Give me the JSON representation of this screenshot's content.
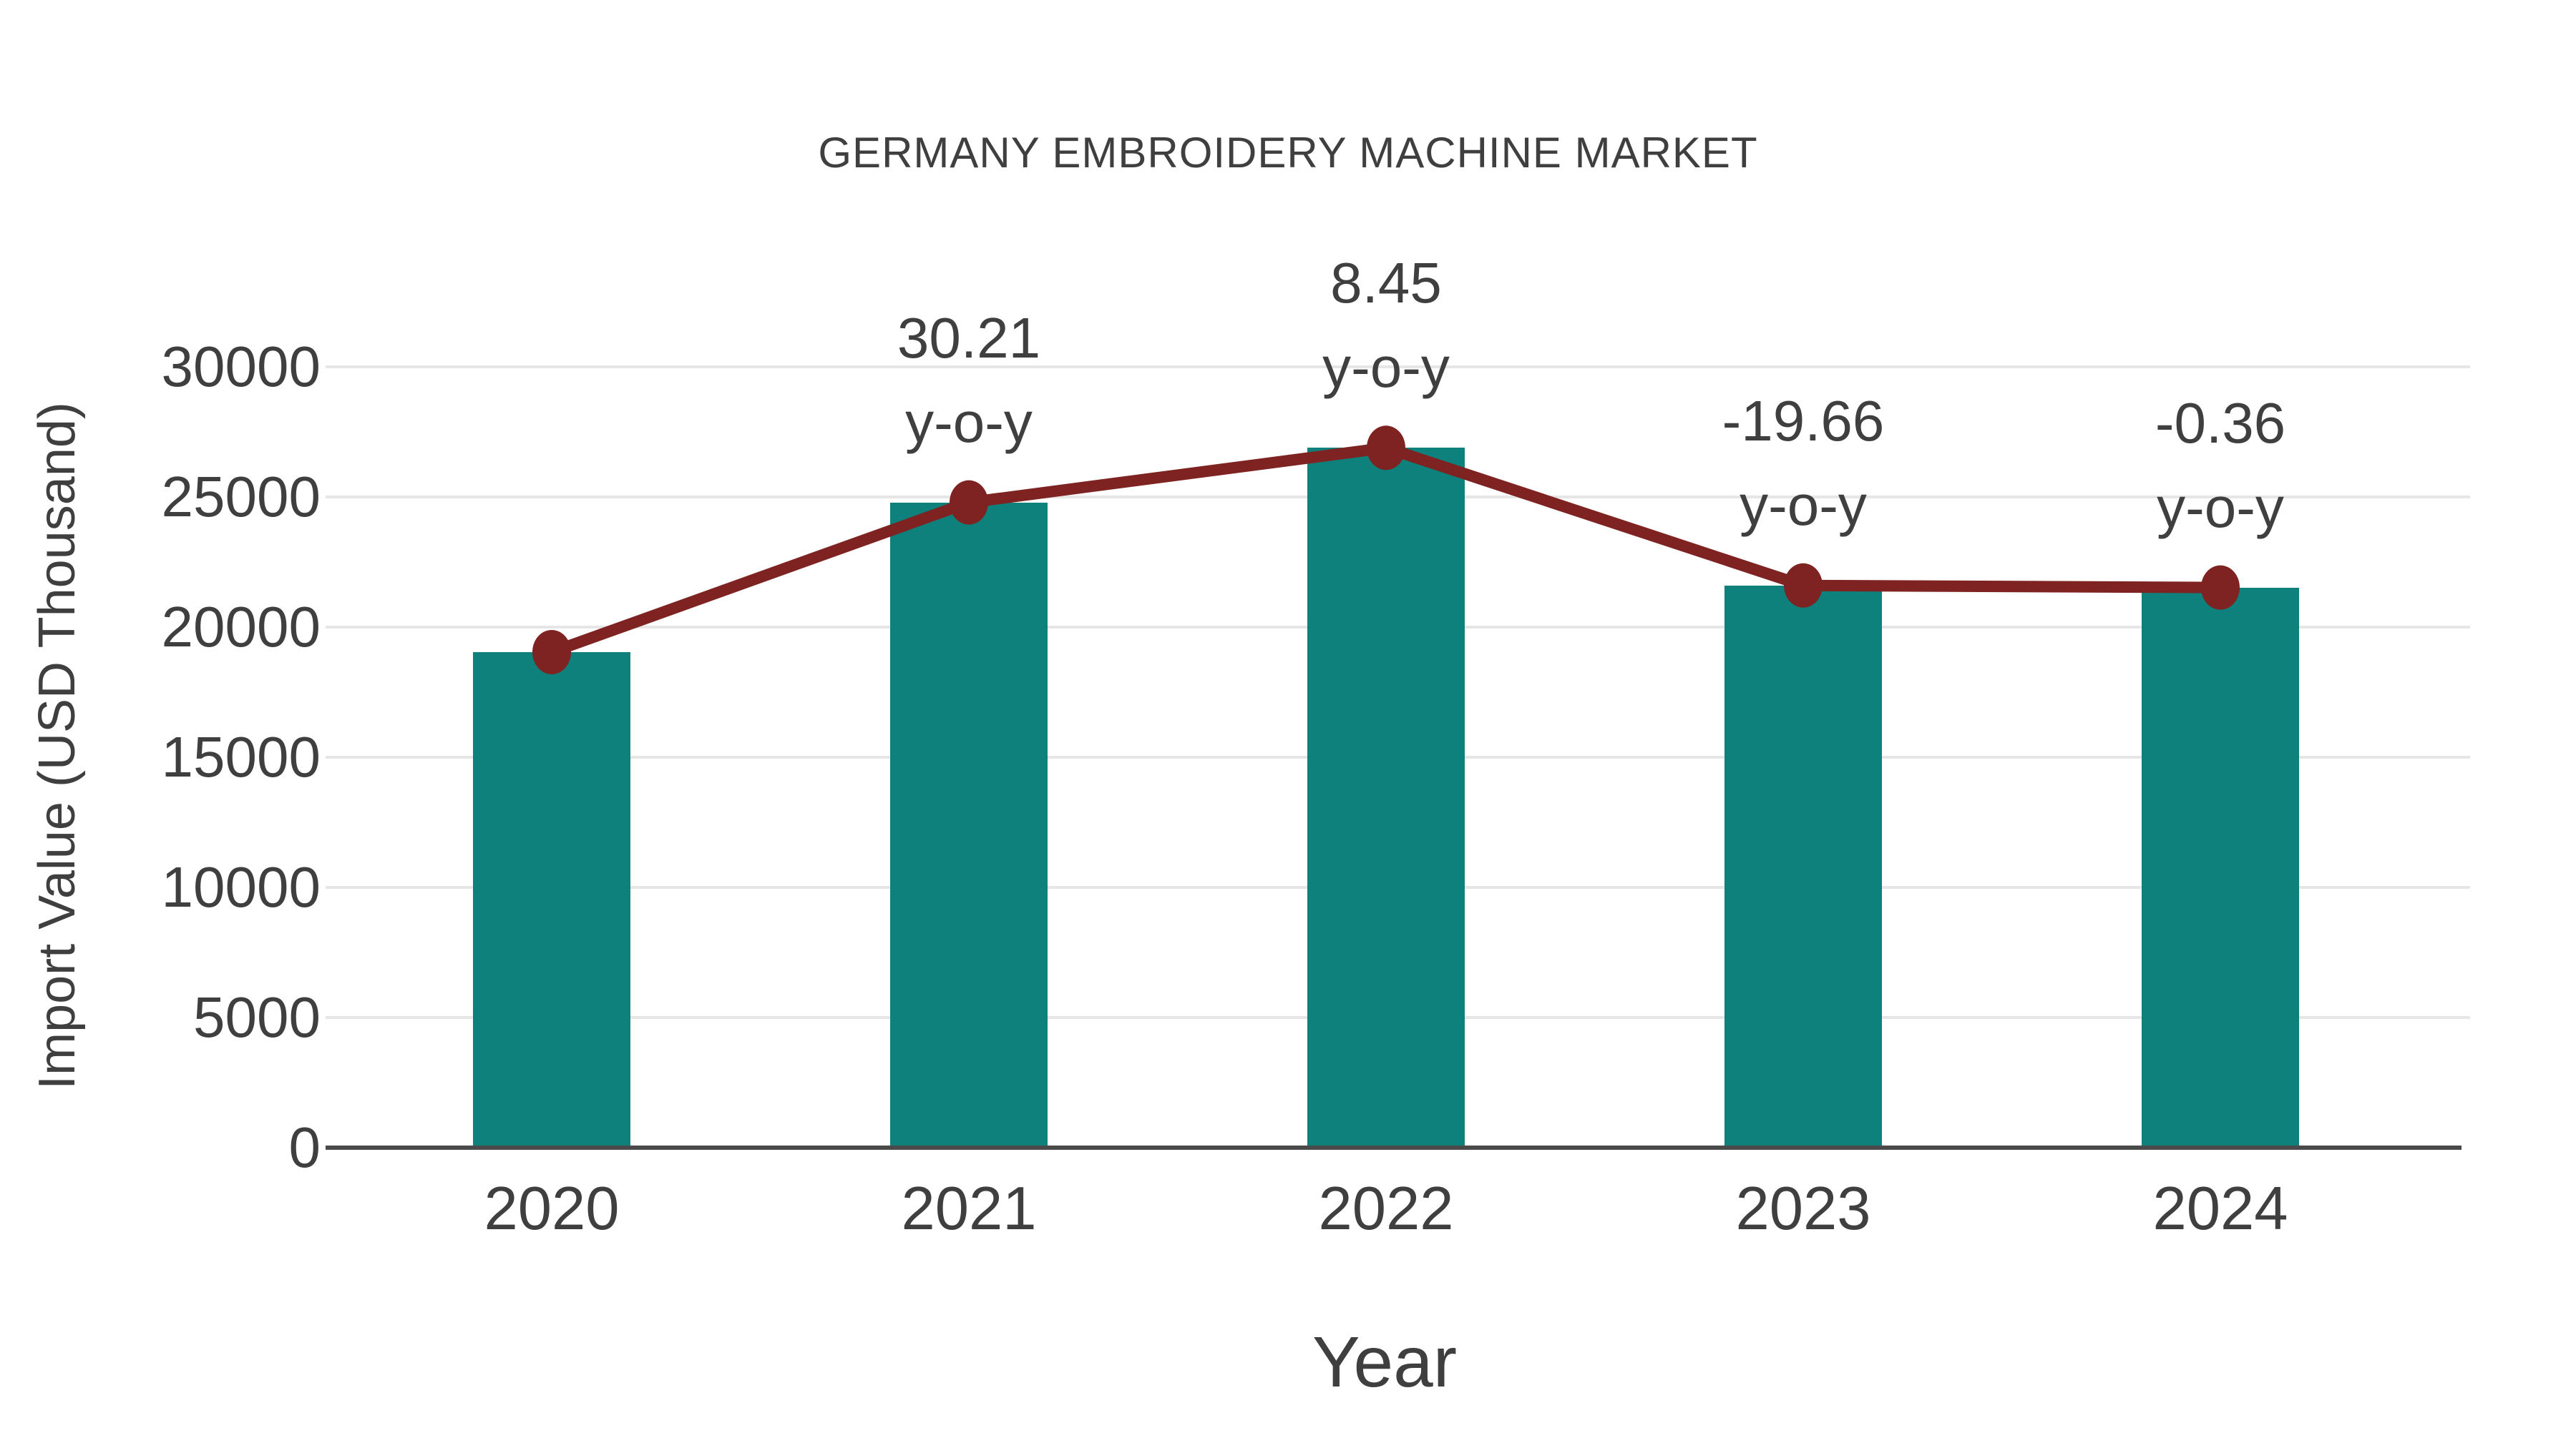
{
  "chart_data": {
    "type": "bar",
    "title": "GERMANY EMBROIDERY MACHINE MARKET",
    "xlabel": "Year",
    "ylabel": "Import Value (USD Thousand)",
    "categories": [
      "2020",
      "2021",
      "2022",
      "2023",
      "2024"
    ],
    "series": [
      {
        "name": "import-value-bars",
        "type": "bar",
        "values": [
          19040,
          24790,
          26890,
          21600,
          21520
        ]
      },
      {
        "name": "import-value-trend-line",
        "type": "line",
        "values": [
          19040,
          24790,
          26890,
          21600,
          21520
        ]
      }
    ],
    "annotations": [
      {
        "category": "2021",
        "value": "30.21",
        "suffix": "y-o-y"
      },
      {
        "category": "2022",
        "value": "8.45",
        "suffix": "y-o-y"
      },
      {
        "category": "2023",
        "value": "-19.66",
        "suffix": "y-o-y"
      },
      {
        "category": "2024",
        "value": "-0.36",
        "suffix": "y-o-y"
      }
    ],
    "ylim": [
      0,
      30000
    ],
    "yticks": [
      0,
      5000,
      10000,
      15000,
      20000,
      25000,
      30000
    ],
    "grid": true,
    "legend_position": "none"
  },
  "colors": {
    "bar": "#0e817c",
    "line": "#7e2321",
    "marker": "#7e2321",
    "text": "#3f3f3f",
    "gridline": "#e6e6e6",
    "axis_line": "#4a4a4a",
    "background": "#ffffff"
  }
}
